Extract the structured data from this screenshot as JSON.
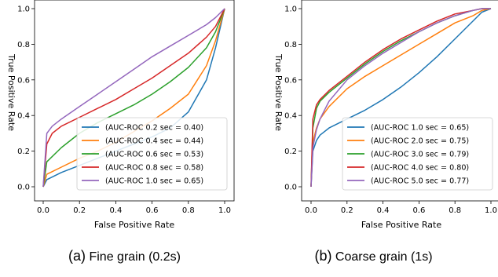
{
  "chart_data": [
    {
      "type": "line",
      "xlabel": "False Positive Rate",
      "ylabel": "True Positive Rate",
      "xlim": [
        0.0,
        1.0
      ],
      "ylim": [
        0.0,
        1.0
      ],
      "xticks": [
        "0.0",
        "0.2",
        "0.4",
        "0.6",
        "0.8",
        "1.0"
      ],
      "yticks": [
        "0.0",
        "0.2",
        "0.4",
        "0.6",
        "0.8",
        "1.0"
      ],
      "grid": false,
      "legend_position": "lower-right",
      "caption": {
        "tag": "(a)",
        "text": "Fine grain (0.2s)"
      },
      "series": [
        {
          "name": "(AUC-ROC 0.2 sec = 0.40)",
          "color": "#1f77b4",
          "x": [
            0,
            0.02,
            0.1,
            0.2,
            0.3,
            0.4,
            0.5,
            0.6,
            0.7,
            0.8,
            0.9,
            0.95,
            1.0
          ],
          "y": [
            0,
            0.04,
            0.08,
            0.12,
            0.16,
            0.2,
            0.24,
            0.28,
            0.33,
            0.42,
            0.6,
            0.78,
            1.0
          ]
        },
        {
          "name": "(AUC-ROC 0.4 sec = 0.44)",
          "color": "#ff7f0e",
          "x": [
            0,
            0.02,
            0.1,
            0.2,
            0.3,
            0.4,
            0.5,
            0.6,
            0.7,
            0.8,
            0.9,
            0.95,
            1.0
          ],
          "y": [
            0,
            0.07,
            0.11,
            0.16,
            0.2,
            0.25,
            0.31,
            0.37,
            0.44,
            0.52,
            0.68,
            0.82,
            1.0
          ]
        },
        {
          "name": "(AUC-ROC 0.6 sec = 0.53)",
          "color": "#2ca02c",
          "x": [
            0,
            0.02,
            0.1,
            0.2,
            0.3,
            0.4,
            0.5,
            0.6,
            0.7,
            0.8,
            0.9,
            0.95,
            1.0
          ],
          "y": [
            0,
            0.14,
            0.22,
            0.3,
            0.36,
            0.41,
            0.46,
            0.52,
            0.59,
            0.67,
            0.78,
            0.87,
            1.0
          ]
        },
        {
          "name": "(AUC-ROC 0.8 sec = 0.58)",
          "color": "#d62728",
          "x": [
            0,
            0.02,
            0.05,
            0.1,
            0.2,
            0.3,
            0.4,
            0.5,
            0.6,
            0.7,
            0.8,
            0.9,
            0.95,
            1.0
          ],
          "y": [
            0,
            0.24,
            0.3,
            0.34,
            0.39,
            0.44,
            0.49,
            0.55,
            0.61,
            0.68,
            0.75,
            0.84,
            0.9,
            1.0
          ]
        },
        {
          "name": "(AUC-ROC 1.0 sec = 0.65)",
          "color": "#9467bd",
          "x": [
            0,
            0.02,
            0.05,
            0.1,
            0.2,
            0.3,
            0.4,
            0.5,
            0.6,
            0.7,
            0.8,
            0.9,
            0.95,
            1.0
          ],
          "y": [
            0,
            0.3,
            0.34,
            0.38,
            0.45,
            0.52,
            0.59,
            0.66,
            0.73,
            0.79,
            0.85,
            0.91,
            0.95,
            1.0
          ]
        }
      ]
    },
    {
      "type": "line",
      "xlabel": "False Positive Rate",
      "ylabel": "True Positive Rate",
      "xlim": [
        0.0,
        1.0
      ],
      "ylim": [
        0.0,
        1.0
      ],
      "xticks": [
        "0.0",
        "0.2",
        "0.4",
        "0.6",
        "0.8",
        "1.0"
      ],
      "yticks": [
        "0.0",
        "0.2",
        "0.4",
        "0.6",
        "0.8",
        "1.0"
      ],
      "grid": false,
      "legend_position": "lower-right",
      "caption": {
        "tag": "(b)",
        "text": "Coarse grain (1s)"
      },
      "series": [
        {
          "name": "(AUC-ROC 1.0 sec = 0.65)",
          "color": "#1f77b4",
          "x": [
            0,
            0.01,
            0.03,
            0.05,
            0.1,
            0.2,
            0.3,
            0.4,
            0.5,
            0.6,
            0.7,
            0.8,
            0.9,
            0.95,
            1.0
          ],
          "y": [
            0,
            0.2,
            0.26,
            0.29,
            0.33,
            0.38,
            0.43,
            0.49,
            0.56,
            0.64,
            0.73,
            0.83,
            0.93,
            0.98,
            1.0
          ]
        },
        {
          "name": "(AUC-ROC 2.0 sec = 0.75)",
          "color": "#ff7f0e",
          "x": [
            0,
            0.01,
            0.03,
            0.05,
            0.1,
            0.2,
            0.3,
            0.4,
            0.5,
            0.6,
            0.7,
            0.8,
            0.9,
            0.95,
            1.0
          ],
          "y": [
            0,
            0.25,
            0.33,
            0.38,
            0.45,
            0.55,
            0.62,
            0.68,
            0.74,
            0.8,
            0.86,
            0.92,
            0.96,
            0.99,
            1.0
          ]
        },
        {
          "name": "(AUC-ROC 3.0 sec = 0.79)",
          "color": "#2ca02c",
          "x": [
            0,
            0.01,
            0.03,
            0.05,
            0.1,
            0.2,
            0.3,
            0.4,
            0.5,
            0.6,
            0.7,
            0.8,
            0.9,
            0.95,
            1.0
          ],
          "y": [
            0,
            0.33,
            0.44,
            0.48,
            0.53,
            0.61,
            0.69,
            0.76,
            0.82,
            0.87,
            0.92,
            0.96,
            0.99,
            1.0,
            1.0
          ]
        },
        {
          "name": "(AUC-ROC 4.0 sec = 0.80)",
          "color": "#d62728",
          "x": [
            0,
            0.01,
            0.03,
            0.05,
            0.1,
            0.2,
            0.3,
            0.4,
            0.5,
            0.6,
            0.7,
            0.8,
            0.9,
            0.95,
            1.0
          ],
          "y": [
            0,
            0.38,
            0.46,
            0.49,
            0.54,
            0.62,
            0.7,
            0.77,
            0.83,
            0.88,
            0.93,
            0.97,
            0.99,
            1.0,
            1.0
          ]
        },
        {
          "name": "(AUC-ROC 5.0 sec = 0.77)",
          "color": "#9467bd",
          "x": [
            0,
            0.01,
            0.03,
            0.05,
            0.1,
            0.2,
            0.3,
            0.4,
            0.5,
            0.6,
            0.7,
            0.8,
            0.9,
            0.95,
            1.0
          ],
          "y": [
            0,
            0.22,
            0.32,
            0.38,
            0.48,
            0.6,
            0.68,
            0.75,
            0.81,
            0.87,
            0.92,
            0.96,
            0.99,
            1.0,
            1.0
          ]
        }
      ]
    }
  ]
}
